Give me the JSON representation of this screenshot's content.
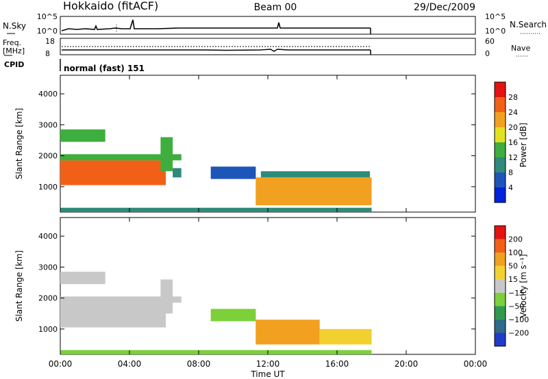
{
  "header": {
    "station": "Hokkaido (fitACF)",
    "beam": "Beam 00",
    "date": "29/Dec/2009"
  },
  "noise_panel": {
    "left_label": "N.Sky",
    "right_label": "N.Search",
    "left_ticks": [
      "10^5",
      "10^0"
    ],
    "right_ticks": [
      "10^5",
      "10^0"
    ]
  },
  "freq_panel": {
    "left_label_line1": "Freq.",
    "left_label_line2": "[MHz]",
    "right_label": "Nave",
    "left_ticks": [
      "18",
      "8"
    ],
    "right_ticks": [
      "60",
      "0"
    ]
  },
  "cpid": {
    "label": "CPID",
    "text": "normal (fast) 151"
  },
  "axes": {
    "xlabel": "Time UT",
    "x_ticks": [
      "00:00",
      "04:00",
      "08:00",
      "12:00",
      "16:00",
      "20:00",
      "00:00"
    ],
    "ylabel": "Slant Range [km]",
    "y_ticks": [
      "1000",
      "2000",
      "3000",
      "4000"
    ]
  },
  "colorbars": {
    "power": {
      "label": "Power [dB]",
      "ticks": [
        "4",
        "8",
        "12",
        "16",
        "20",
        "24",
        "28"
      ],
      "colors": [
        "#0022dd",
        "#1e55b8",
        "#2e8a7a",
        "#3eae3e",
        "#e3e020",
        "#f2a020",
        "#f26018",
        "#e61212"
      ]
    },
    "velocity": {
      "label": "Velocity [m s⁻¹]",
      "ticks": [
        "200",
        "100",
        "50",
        "15",
        "−15",
        "−50",
        "−100",
        "−200"
      ],
      "colors": [
        "#1f3cc8",
        "#2e6a8a",
        "#2e9a50",
        "#7cd03a",
        "#c8c8c8",
        "#f2d030",
        "#f2a020",
        "#f26018",
        "#e61212"
      ]
    }
  },
  "chart_data": [
    {
      "type": "heatmap",
      "panel": "power",
      "title": "",
      "xlabel": "Time UT",
      "ylabel": "Slant Range [km]",
      "xlim": [
        0,
        24
      ],
      "ylim": [
        180,
        4600
      ],
      "zlabel": "Power [dB]",
      "zlim": [
        0,
        30
      ],
      "regions": [
        {
          "t": [
            0.0,
            6.1
          ],
          "r": [
            1050,
            1850
          ],
          "z": 24
        },
        {
          "t": [
            0.0,
            7.0
          ],
          "r": [
            1850,
            2050
          ],
          "z": 14
        },
        {
          "t": [
            0.0,
            2.6
          ],
          "r": [
            2450,
            2850
          ],
          "z": 12
        },
        {
          "t": [
            5.8,
            6.5
          ],
          "r": [
            1500,
            2600
          ],
          "z": 12
        },
        {
          "t": [
            6.5,
            7.0
          ],
          "r": [
            1300,
            1600
          ],
          "z": 8
        },
        {
          "t": [
            8.7,
            11.3
          ],
          "r": [
            1250,
            1650
          ],
          "z": 7
        },
        {
          "t": [
            11.3,
            18.0
          ],
          "r": [
            400,
            1300
          ],
          "z": 22
        },
        {
          "t": [
            11.6,
            17.9
          ],
          "r": [
            1300,
            1500
          ],
          "z": 8
        },
        {
          "t": [
            0.0,
            18.0
          ],
          "r": [
            180,
            320
          ],
          "z": 9
        }
      ]
    },
    {
      "type": "heatmap",
      "panel": "velocity",
      "title": "",
      "xlabel": "Time UT",
      "ylabel": "Slant Range [km]",
      "xlim": [
        0,
        24
      ],
      "ylim": [
        180,
        4600
      ],
      "zlabel": "Velocity [m s⁻¹]",
      "zlim": [
        -250,
        250
      ],
      "regions": [
        {
          "t": [
            0.0,
            6.1
          ],
          "r": [
            1050,
            1850
          ],
          "z": 0
        },
        {
          "t": [
            0.0,
            7.0
          ],
          "r": [
            1850,
            2050
          ],
          "z": 0
        },
        {
          "t": [
            0.0,
            2.6
          ],
          "r": [
            2450,
            2850
          ],
          "z": 0
        },
        {
          "t": [
            5.8,
            6.5
          ],
          "r": [
            1500,
            2600
          ],
          "z": 0
        },
        {
          "t": [
            8.7,
            11.3
          ],
          "r": [
            1250,
            1650
          ],
          "z": 20
        },
        {
          "t": [
            11.3,
            15.0
          ],
          "r": [
            500,
            1300
          ],
          "z": -70
        },
        {
          "t": [
            15.0,
            18.0
          ],
          "r": [
            500,
            1000
          ],
          "z": -40
        },
        {
          "t": [
            0.0,
            18.0
          ],
          "r": [
            180,
            320
          ],
          "z": 30
        }
      ]
    }
  ]
}
